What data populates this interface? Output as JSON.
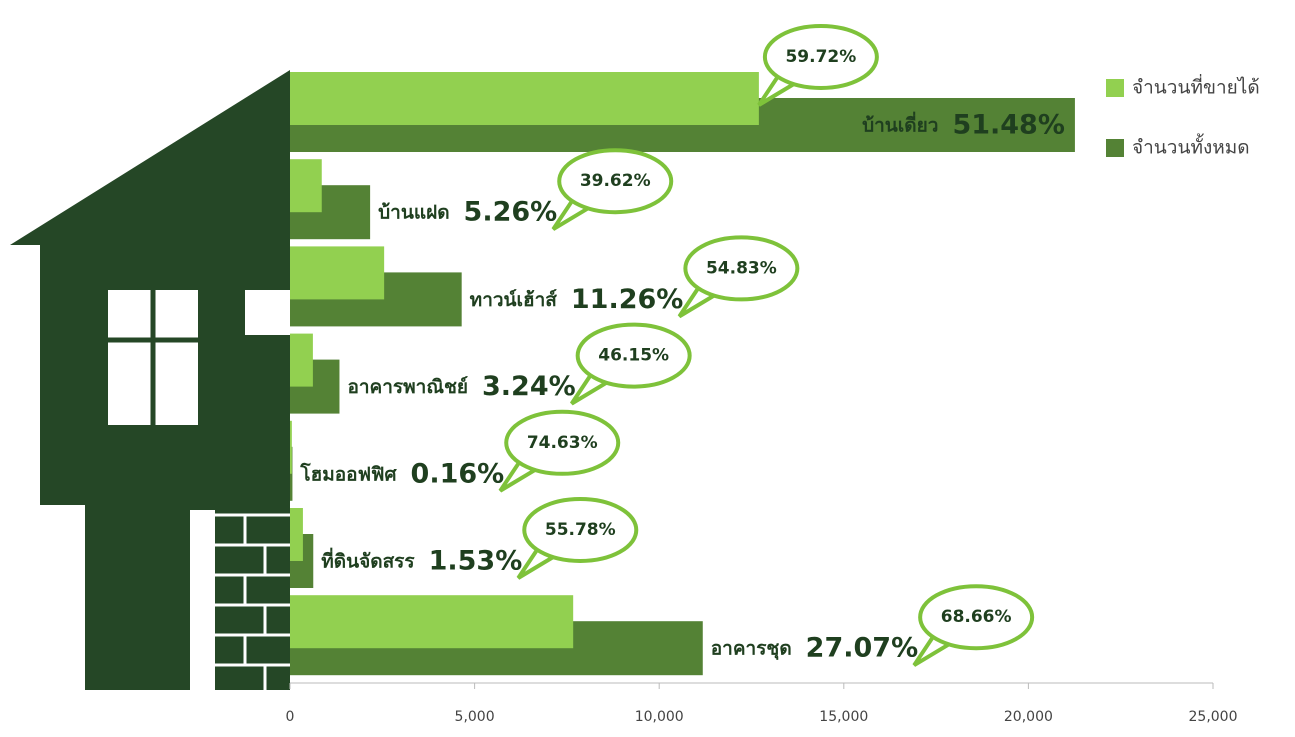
{
  "chart_data": {
    "type": "bar",
    "orientation": "horizontal",
    "categories": [
      "บ้านเดี่ยว",
      "บ้านแฝด",
      "ทาวน์เฮ้าส์",
      "อาคารพาณิชย์",
      "โฮมออฟฟิศ",
      "ที่ดินจัดสรร",
      "อาคารชุด"
    ],
    "share_labels": [
      "51.48%",
      "5.26%",
      "11.26%",
      "3.24%",
      "0.16%",
      "1.53%",
      "27.07%"
    ],
    "sold_rate_labels": [
      "59.72%",
      "39.62%",
      "54.83%",
      "46.15%",
      "74.63%",
      "55.78%",
      "68.66%"
    ],
    "series": [
      {
        "name": "จำนวนที่ขายได้",
        "color": "#92d050",
        "values": [
          12700,
          860,
          2550,
          620,
          50,
          350,
          7670
        ]
      },
      {
        "name": "จำนวนทั้งหมด",
        "color": "#548235",
        "values": [
          21260,
          2170,
          4650,
          1340,
          66,
          630,
          11180
        ]
      }
    ],
    "xlim": [
      0,
      25000
    ],
    "xticks": [
      0,
      {
        "value": 5000,
        "label": "5,000"
      },
      {
        "value": 10000,
        "label": "10,000"
      },
      {
        "value": 15000,
        "label": "15,000"
      },
      {
        "value": 20000,
        "label": "20,000"
      },
      {
        "value": 25000,
        "label": "25,000"
      }
    ],
    "legend": "top-right"
  }
}
